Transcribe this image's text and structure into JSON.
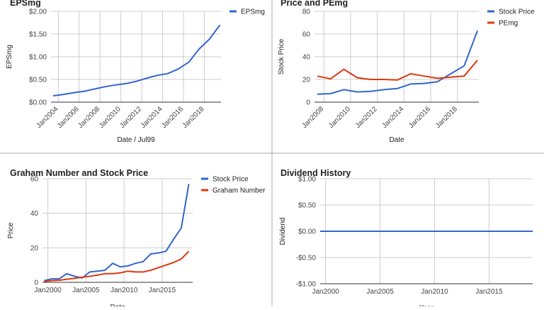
{
  "colors": {
    "blue": "#3366cc",
    "red": "#dc3912",
    "grid": "#cccccc",
    "text": "#222222",
    "tick": "#444444",
    "axis": "#333333",
    "divider": "#aaaaaa"
  },
  "chart_data": [
    {
      "id": "eps",
      "type": "line",
      "title": "EPSmg",
      "xlabel": "Date / Jul99",
      "ylabel": "EPSmg",
      "xlim": [
        2003.3,
        2019.6
      ],
      "ylim": [
        0,
        2
      ],
      "y_ticks": [
        {
          "v": 0,
          "label": "$0.00"
        },
        {
          "v": 0.5,
          "label": "$0.50"
        },
        {
          "v": 1.0,
          "label": "$1.00"
        },
        {
          "v": 1.5,
          "label": "$1.50"
        },
        {
          "v": 2.0,
          "label": "$2.00"
        }
      ],
      "x_ticks": [
        {
          "v": 2004,
          "label": "Jan2004"
        },
        {
          "v": 2006,
          "label": "Jan2006"
        },
        {
          "v": 2008,
          "label": "Jan2008"
        },
        {
          "v": 2010,
          "label": "Jan2010"
        },
        {
          "v": 2012,
          "label": "Jan2012"
        },
        {
          "v": 2014,
          "label": "Jan2014"
        },
        {
          "v": 2016,
          "label": "Jan2016"
        },
        {
          "v": 2018,
          "label": "Jan2018"
        }
      ],
      "series": [
        {
          "name": "EPSmg",
          "color": "#3366cc",
          "x": [
            2003.5,
            2004.5,
            2005.5,
            2006.5,
            2007.5,
            2008.5,
            2009.5,
            2010.5,
            2011.5,
            2012.5,
            2013.5,
            2014.5,
            2015.5,
            2016.5,
            2017.5,
            2018.5,
            2019.5
          ],
          "y": [
            0.14,
            0.17,
            0.21,
            0.24,
            0.29,
            0.34,
            0.38,
            0.41,
            0.46,
            0.53,
            0.59,
            0.63,
            0.73,
            0.88,
            1.17,
            1.39,
            1.7
          ]
        }
      ]
    },
    {
      "id": "pe",
      "type": "line",
      "title": "Price and PEmg",
      "xlabel": "Date",
      "ylabel": "Stock Price",
      "xlim": [
        2007.3,
        2019.6
      ],
      "ylim": [
        0,
        80
      ],
      "y_ticks": [
        {
          "v": 0,
          "label": "0"
        },
        {
          "v": 20,
          "label": "20"
        },
        {
          "v": 40,
          "label": "40"
        },
        {
          "v": 60,
          "label": "60"
        },
        {
          "v": 80,
          "label": "80"
        }
      ],
      "x_ticks": [
        {
          "v": 2008,
          "label": "Jan2008"
        },
        {
          "v": 2010,
          "label": "Jan2010"
        },
        {
          "v": 2012,
          "label": "Jan2012"
        },
        {
          "v": 2014,
          "label": "Jan2014"
        },
        {
          "v": 2016,
          "label": "Jan2016"
        },
        {
          "v": 2018,
          "label": "Jan2018"
        }
      ],
      "series": [
        {
          "name": "Stock Price",
          "color": "#3366cc",
          "x": [
            2007.5,
            2008.5,
            2009.5,
            2010.5,
            2011.5,
            2012.5,
            2013.5,
            2014.5,
            2015.5,
            2016.5,
            2017.5,
            2018.5,
            2019.5
          ],
          "y": [
            7,
            7.5,
            11,
            9,
            9.5,
            11,
            12,
            16,
            16.5,
            18,
            25,
            32,
            63
          ]
        },
        {
          "name": "PEmg",
          "color": "#dc3912",
          "x": [
            2007.5,
            2008.5,
            2009.5,
            2010.5,
            2011.5,
            2012.5,
            2013.5,
            2014.5,
            2015.5,
            2016.5,
            2017.5,
            2018.5,
            2019.5
          ],
          "y": [
            23,
            20.5,
            29,
            21.5,
            20,
            20,
            19.5,
            25,
            23,
            21,
            22,
            23,
            37
          ]
        }
      ]
    },
    {
      "id": "graham",
      "type": "line",
      "title": "Graham Number and Stock Price",
      "xlabel": "Date",
      "ylabel": "Price",
      "xlim": [
        1999.3,
        2019.0
      ],
      "ylim": [
        0,
        60
      ],
      "y_ticks": [
        {
          "v": 0,
          "label": "0"
        },
        {
          "v": 20,
          "label": "20"
        },
        {
          "v": 40,
          "label": "40"
        },
        {
          "v": 60,
          "label": "60"
        }
      ],
      "x_ticks": [
        {
          "v": 2000,
          "label": "Jan2000"
        },
        {
          "v": 2005,
          "label": "Jan2005"
        },
        {
          "v": 2010,
          "label": "Jan2010"
        },
        {
          "v": 2015,
          "label": "Jan2015"
        }
      ],
      "series": [
        {
          "name": "Stock Price",
          "color": "#3366cc",
          "x": [
            1999.5,
            2000.5,
            2001.5,
            2002.5,
            2003.5,
            2004.5,
            2005.5,
            2006.5,
            2007.5,
            2008.5,
            2009.5,
            2010.5,
            2011.5,
            2012.5,
            2013.5,
            2014.5,
            2015.5,
            2016.5,
            2017.5,
            2018.5
          ],
          "y": [
            1,
            2,
            2,
            5,
            3.5,
            2.5,
            6,
            6.5,
            7,
            11,
            9,
            9.5,
            11,
            12,
            16.5,
            17,
            18,
            25,
            31.5,
            57
          ]
        },
        {
          "name": "Graham Number",
          "color": "#dc3912",
          "x": [
            1999.5,
            2000.5,
            2001.5,
            2002.5,
            2003.5,
            2004.5,
            2005.5,
            2006.5,
            2007.5,
            2008.5,
            2009.5,
            2010.5,
            2011.5,
            2012.5,
            2013.5,
            2014.5,
            2015.5,
            2016.5,
            2017.5,
            2018.5
          ],
          "y": [
            0.5,
            1,
            1.2,
            1.8,
            2.3,
            3,
            3.5,
            4.2,
            5,
            5,
            5.5,
            6.5,
            6,
            6,
            7,
            8.5,
            10,
            11.5,
            13.5,
            18
          ]
        }
      ]
    },
    {
      "id": "dividend",
      "type": "line",
      "title": "Dividend History",
      "xlabel": "Year",
      "ylabel": "Dividend",
      "xlim": [
        1999.5,
        2019.0
      ],
      "ylim": [
        -1,
        1
      ],
      "y_ticks": [
        {
          "v": -1,
          "label": "-$1.00"
        },
        {
          "v": -0.5,
          "label": "-$0.50"
        },
        {
          "v": 0,
          "label": "$0.00"
        },
        {
          "v": 0.5,
          "label": "$0.50"
        },
        {
          "v": 1,
          "label": "$1.00"
        }
      ],
      "x_ticks": [
        {
          "v": 2000,
          "label": "Jan2000"
        },
        {
          "v": 2005,
          "label": "Jan2005"
        },
        {
          "v": 2010,
          "label": "Jan2010"
        },
        {
          "v": 2015,
          "label": "Jan2015"
        }
      ],
      "series": [
        {
          "name": "Dividend",
          "color": "#3366cc",
          "x": [
            1999.5,
            2019.0
          ],
          "y": [
            0,
            0
          ]
        }
      ]
    }
  ]
}
